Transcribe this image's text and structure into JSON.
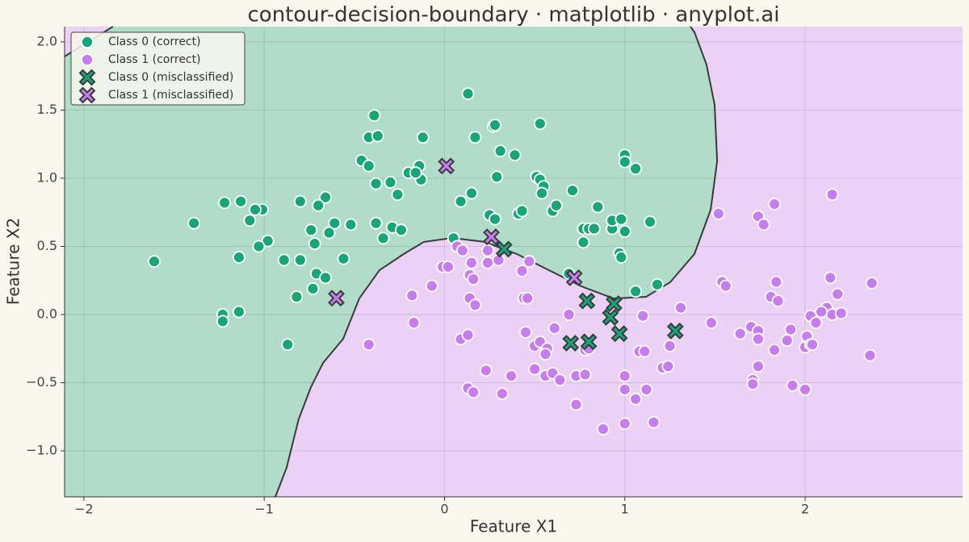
{
  "chart_data": {
    "type": "scatter",
    "title": "contour-decision-boundary · matplotlib · anyplot.ai",
    "x_label": "Feature X1",
    "y_label": "Feature X2",
    "xlim": [
      -2.107,
      2.873
    ],
    "ylim": [
      -1.337,
      2.112
    ],
    "xticks": [
      {
        "value": -2,
        "label": "−2"
      },
      {
        "value": -1,
        "label": "−1"
      },
      {
        "value": 0,
        "label": "0"
      },
      1,
      2
    ],
    "yticks": [
      {
        "value": -1.0,
        "label": "−1.0"
      },
      {
        "value": -0.5,
        "label": "−0.5"
      },
      {
        "value": 0.0,
        "label": "0.0"
      },
      0.5,
      {
        "value": 1.0,
        "label": "1.0"
      },
      1.5,
      {
        "value": 2.0,
        "label": "2.0"
      }
    ],
    "grid": true,
    "legend": "upper left",
    "region_colors": [
      "#b0dcc9",
      "#ead1f5"
    ],
    "decision_boundary": {
      "x": [
        -0.938,
        -0.876,
        -0.809,
        -0.741,
        -0.674,
        -0.562,
        -0.473,
        -0.361,
        -0.226,
        -0.114,
        0.043,
        0.222,
        0.401,
        0.58,
        0.759,
        0.938,
        1.118,
        1.252,
        1.386,
        1.476,
        1.512,
        1.498,
        1.453,
        1.386,
        1.364,
        null,
        -1.839,
        -2.107
      ],
      "y": [
        -1.337,
        -1.124,
        -0.769,
        -0.533,
        -0.355,
        -0.178,
        0.118,
        0.325,
        0.444,
        0.533,
        0.562,
        0.533,
        0.444,
        0.325,
        0.207,
        0.118,
        0.13,
        0.237,
        0.444,
        0.769,
        1.124,
        1.538,
        1.834,
        2.071,
        2.112,
        null,
        2.112,
        1.893
      ]
    },
    "series": [
      {
        "name": "Class 0 (correct)",
        "color": "#17a57a",
        "marker": "o",
        "x": [
          -1.61,
          -1.39,
          -1.22,
          -1.13,
          -1.01,
          -1.08,
          -1.05,
          -0.98,
          -1.14,
          -1.03,
          -0.8,
          -0.66,
          -0.7,
          -0.61,
          -0.74,
          -0.64,
          -0.72,
          -0.52,
          -0.89,
          -0.8,
          -0.56,
          -0.71,
          -0.66,
          -0.73,
          -0.82,
          -1.23,
          -1.23,
          -1.14,
          -0.87,
          -0.39,
          -0.42,
          -0.37,
          -0.46,
          -0.42,
          -0.38,
          -0.3,
          -0.26,
          -0.38,
          -0.34,
          -0.29,
          -0.24,
          -0.2,
          -0.14,
          -0.13,
          -0.16,
          -0.12,
          0.13,
          0.27,
          0.28,
          0.17,
          0.31,
          0.39,
          0.29,
          0.09,
          0.15,
          0.05,
          0.25,
          0.28,
          0.41,
          0.43,
          0.53,
          0.51,
          0.53,
          0.55,
          0.54,
          0.6,
          0.62,
          0.71,
          0.69,
          0.85,
          0.77,
          0.8,
          0.77,
          0.83,
          0.93,
          0.93,
          0.98,
          1.0,
          1.0,
          1.06,
          1.0,
          0.97,
          0.98,
          1.14,
          1.06,
          1.18
        ],
        "y": [
          0.39,
          0.67,
          0.82,
          0.83,
          0.77,
          0.69,
          0.77,
          0.54,
          0.42,
          0.5,
          0.83,
          0.86,
          0.8,
          0.67,
          0.62,
          0.6,
          0.52,
          0.66,
          0.4,
          0.4,
          0.41,
          0.3,
          0.27,
          0.19,
          0.13,
          0.0,
          -0.05,
          0.02,
          -0.22,
          1.46,
          1.3,
          1.31,
          1.13,
          1.09,
          0.96,
          0.97,
          0.88,
          0.67,
          0.56,
          0.64,
          0.62,
          1.04,
          1.09,
          0.99,
          1.04,
          1.3,
          1.62,
          1.38,
          1.39,
          1.3,
          1.2,
          1.17,
          1.01,
          0.83,
          0.89,
          0.56,
          0.73,
          0.7,
          0.74,
          0.76,
          1.4,
          1.01,
          0.99,
          0.94,
          0.89,
          0.76,
          0.8,
          0.91,
          0.3,
          0.79,
          0.63,
          0.63,
          0.53,
          0.63,
          0.63,
          0.69,
          0.7,
          1.17,
          1.12,
          1.07,
          0.61,
          0.45,
          0.42,
          0.68,
          0.17,
          0.22
        ]
      },
      {
        "name": "Class 1 (correct)",
        "color": "#c77cf0",
        "marker": "o",
        "x": [
          -0.42,
          -0.17,
          -0.18,
          -0.07,
          -0.01,
          0.02,
          0.07,
          0.1,
          0.15,
          0.14,
          0.16,
          0.14,
          0.17,
          0.24,
          0.24,
          0.3,
          0.43,
          0.47,
          0.44,
          0.46,
          0.45,
          0.23,
          0.13,
          0.16,
          0.09,
          0.13,
          0.32,
          0.37,
          0.5,
          0.53,
          0.57,
          0.61,
          0.56,
          0.5,
          0.56,
          0.6,
          0.64,
          0.73,
          0.69,
          0.78,
          0.78,
          0.8,
          0.73,
          0.88,
          1.0,
          1.0,
          1.0,
          1.06,
          1.12,
          1.08,
          1.11,
          1.21,
          1.24,
          1.25,
          1.31,
          1.16,
          1.1,
          1.48,
          1.52,
          1.54,
          1.56,
          1.64,
          1.7,
          1.74,
          1.74,
          1.71,
          1.71,
          1.74,
          1.74,
          1.77,
          1.81,
          1.83,
          1.84,
          1.85,
          1.92,
          1.9,
          1.83,
          1.93,
          2.0,
          2.01,
          2.03,
          2.04,
          2.03,
          2.06,
          2.0,
          2.12,
          2.15,
          2.14,
          2.18,
          2.2,
          2.15,
          2.37,
          2.36,
          2.09
        ],
        "y": [
          -0.22,
          -0.06,
          0.14,
          0.21,
          0.35,
          0.35,
          0.5,
          0.47,
          0.38,
          0.29,
          0.26,
          0.12,
          0.07,
          0.38,
          0.47,
          0.4,
          0.32,
          0.39,
          0.12,
          0.12,
          -0.13,
          -0.41,
          -0.54,
          -0.57,
          -0.18,
          -0.15,
          -0.58,
          -0.45,
          -0.23,
          -0.2,
          -0.25,
          -0.1,
          -0.29,
          -0.4,
          -0.45,
          -0.43,
          -0.48,
          -0.45,
          0.0,
          -0.44,
          -0.26,
          -0.25,
          -0.66,
          -0.84,
          -0.45,
          -0.55,
          -0.8,
          -0.62,
          -0.55,
          -0.27,
          -0.27,
          -0.39,
          -0.38,
          -0.23,
          0.05,
          -0.79,
          -0.01,
          -0.06,
          0.74,
          0.24,
          0.21,
          -0.14,
          -0.09,
          -0.12,
          -0.18,
          -0.48,
          -0.51,
          -0.38,
          0.72,
          0.66,
          0.13,
          0.81,
          0.24,
          0.1,
          -0.11,
          -0.19,
          -0.26,
          -0.52,
          -0.24,
          -0.16,
          -0.22,
          -0.22,
          -0.01,
          -0.06,
          -0.55,
          0.05,
          0.0,
          0.27,
          0.15,
          0.01,
          0.88,
          0.23,
          -0.3,
          0.02
        ]
      },
      {
        "name": "Class 0 (misclassified)",
        "color": "#17a57a",
        "marker": "x",
        "x": [
          0.33,
          0.79,
          0.94,
          0.92,
          0.97,
          0.7,
          0.8,
          1.28
        ],
        "y": [
          0.48,
          0.1,
          0.08,
          -0.02,
          -0.14,
          -0.21,
          -0.2,
          -0.12
        ]
      },
      {
        "name": "Class 1 (misclassified)",
        "color": "#c77cf0",
        "marker": "x",
        "x": [
          0.01,
          0.26,
          0.72,
          -0.6
        ],
        "y": [
          1.09,
          0.57,
          0.27,
          0.12
        ]
      }
    ]
  }
}
